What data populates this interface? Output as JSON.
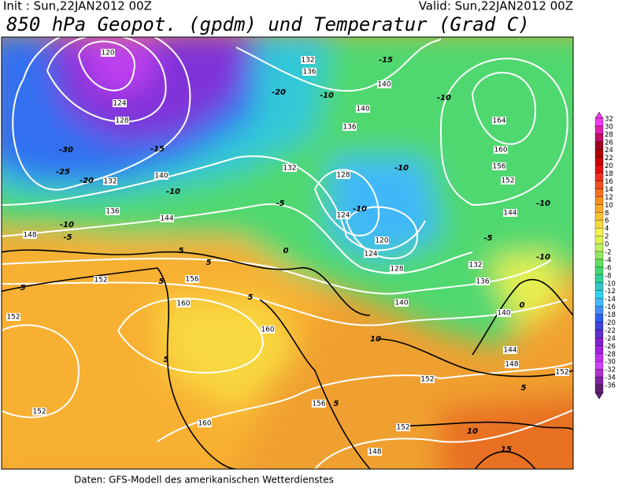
{
  "header": {
    "init": "Init : Sun,22JAN2012 00Z",
    "valid": "Valid: Sun,22JAN2012 00Z",
    "title": "850 hPa Geopot. (gpdm) und Temperatur (Grad C)"
  },
  "footer": "Daten: GFS-Modell des amerikanischen Wetterdienstes",
  "colorbar": {
    "labels": [
      32,
      30,
      28,
      26,
      24,
      22,
      20,
      18,
      16,
      14,
      12,
      10,
      8,
      6,
      4,
      2,
      0,
      -2,
      -4,
      -6,
      -8,
      -10,
      -12,
      -14,
      -16,
      -18,
      -20,
      -22,
      -24,
      -26,
      -28,
      -30,
      -32,
      -34,
      -36
    ],
    "colors": [
      "#f03cf0",
      "#e020b0",
      "#c01060",
      "#a00020",
      "#b00000",
      "#cc0000",
      "#e01010",
      "#f03020",
      "#f05020",
      "#f87020",
      "#f89020",
      "#f8a828",
      "#f8c030",
      "#f8d840",
      "#f8f050",
      "#e0f050",
      "#c0f060",
      "#90e860",
      "#60e060",
      "#40d870",
      "#30d098",
      "#30c8c8",
      "#30d0f0",
      "#40b8f8",
      "#4090f8",
      "#3060f0",
      "#4040e0",
      "#6030d0",
      "#8020d0",
      "#a020e0",
      "#c030f0",
      "#d040f8",
      "#b030d0",
      "#8020a0",
      "#602070"
    ]
  },
  "geopotential_labels": [
    120,
    124,
    128,
    132,
    136,
    140,
    144,
    148,
    152,
    156,
    160,
    160,
    152,
    152,
    160,
    156,
    152,
    148,
    152,
    148,
    144,
    140,
    136,
    132,
    128,
    124,
    120,
    124,
    128,
    132,
    136,
    140,
    164,
    160,
    156,
    152,
    144,
    152,
    140,
    136,
    132,
    140
  ],
  "temperature_labels": [
    -30,
    -25,
    -20,
    -10,
    -5,
    -5,
    5,
    5,
    5,
    5,
    5,
    0,
    -5,
    -10,
    -10,
    -5,
    0,
    10,
    5,
    10,
    15,
    -10,
    -10,
    -15,
    -10,
    -10,
    5,
    -15,
    -10,
    -20
  ]
}
